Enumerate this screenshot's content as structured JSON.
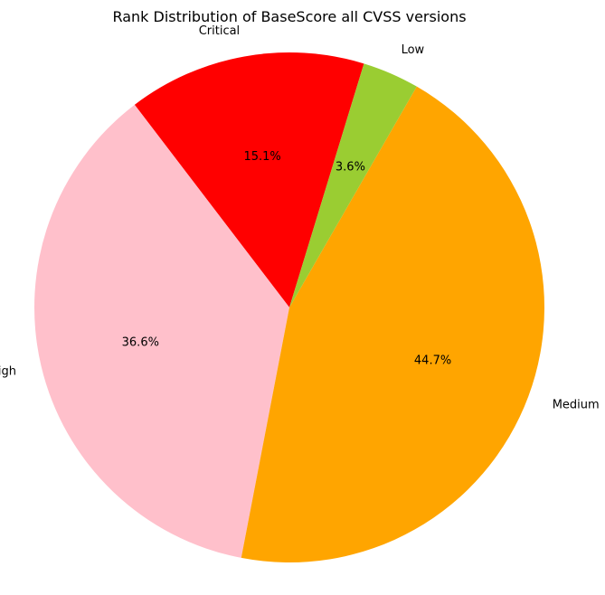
{
  "chart_data": {
    "type": "pie",
    "title": "Rank Distribution of BaseScore all CVSS versions",
    "slices": [
      {
        "label": "Critical",
        "value": 15.1,
        "pct_label": "15.1%",
        "color": "#ff0000"
      },
      {
        "label": "High",
        "value": 36.6,
        "pct_label": "36.6%",
        "color": "#ffc0cb"
      },
      {
        "label": "Medium",
        "value": 44.7,
        "pct_label": "44.7%",
        "color": "#ffa500"
      },
      {
        "label": "Low",
        "value": 3.6,
        "pct_label": "3.6%",
        "color": "#9acd32"
      }
    ],
    "legend": "none"
  }
}
